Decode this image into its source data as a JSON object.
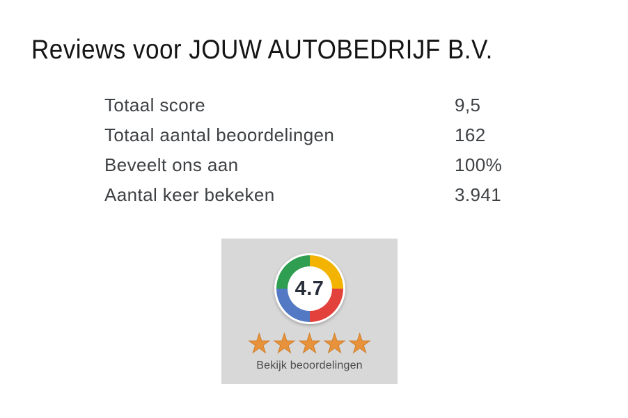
{
  "page": {
    "title": "Reviews voor JOUW AUTOBEDRIJF B.V."
  },
  "stats": {
    "rows": [
      {
        "label": "Totaal score",
        "value": "9,5"
      },
      {
        "label": "Totaal aantal beoordelingen",
        "value": "162"
      },
      {
        "label": "Beveelt ons aan",
        "value": "100%"
      },
      {
        "label": "Aantal keer bekeken",
        "value": "3.941"
      }
    ]
  },
  "widget": {
    "score": "4.7",
    "stars_count": 5,
    "star_icon": "★",
    "link_label": "Bekijk beoordelingen",
    "colors": {
      "box_bg": "#d8d8d8",
      "ring_green": "#2f9e50",
      "ring_yellow": "#f2b301",
      "ring_red": "#e2423b",
      "ring_blue": "#5379c4",
      "star_orange": "#e8923c",
      "score_text": "#272e3a"
    }
  }
}
